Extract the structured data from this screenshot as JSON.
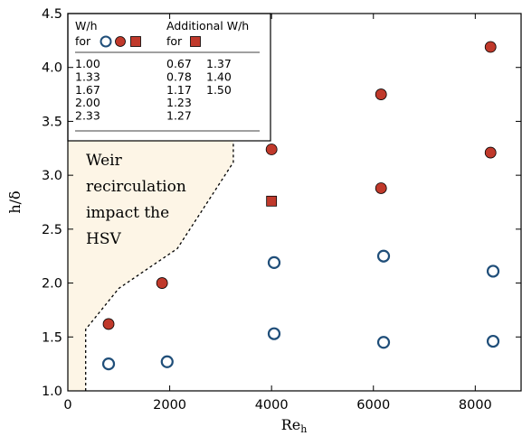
{
  "chart_data": {
    "type": "scatter",
    "xlabel": "Re",
    "xlabel_sub": "h",
    "ylabel": "h/δ",
    "xlim": [
      0,
      8900
    ],
    "ylim": [
      1.0,
      4.5
    ],
    "x_ticks": [
      0,
      2000,
      4000,
      6000,
      8000
    ],
    "y_ticks": [
      1.0,
      1.5,
      2.0,
      2.5,
      3.0,
      3.5,
      4.0,
      4.5
    ],
    "x_tick_labels": [
      "0",
      "2000",
      "4000",
      "6000",
      "8000"
    ],
    "y_tick_labels": [
      "1.0",
      "1.5",
      "2.0",
      "2.5",
      "3.0",
      "3.5",
      "4.0",
      "4.5"
    ],
    "grid": false,
    "legend_placement": "top-left",
    "series": [
      {
        "marker": "open-circle",
        "color": "#1f4e79",
        "points": [
          [
            800,
            1.25
          ],
          [
            1950,
            1.27
          ],
          [
            4050,
            1.53
          ],
          [
            6200,
            1.45
          ],
          [
            8350,
            1.46
          ],
          [
            4050,
            2.19
          ],
          [
            6200,
            2.25
          ],
          [
            8350,
            2.11
          ]
        ]
      },
      {
        "marker": "filled-circle",
        "color": "#c0392b",
        "points": [
          [
            800,
            1.62
          ],
          [
            1850,
            2.0
          ],
          [
            4000,
            3.24
          ],
          [
            6150,
            2.88
          ],
          [
            6150,
            3.75
          ],
          [
            8300,
            3.21
          ],
          [
            8300,
            4.19
          ]
        ]
      },
      {
        "marker": "filled-square",
        "color": "#c0392b",
        "points": [
          [
            4000,
            2.76
          ]
        ]
      }
    ],
    "region": {
      "label_lines": [
        "Weir",
        "recirculation",
        "impact the",
        "HSV"
      ],
      "fill": "#fdf5e6",
      "boundary": [
        [
          350,
          1.0
        ],
        [
          350,
          1.57
        ],
        [
          1000,
          1.95
        ],
        [
          2150,
          2.32
        ],
        [
          3250,
          3.12
        ],
        [
          3250,
          3.36
        ]
      ]
    },
    "legend": {
      "col1_head": [
        "W/h",
        "for"
      ],
      "col2_head": [
        "Additional W/h",
        "for"
      ],
      "col1_values": [
        "1.00",
        "1.33",
        "1.67",
        "2.00",
        "2.33"
      ],
      "col2_values": [
        "0.67",
        "0.78",
        "1.17",
        "1.23",
        "1.27"
      ],
      "col3_values": [
        "1.37",
        "1.40",
        "1.50"
      ]
    }
  }
}
